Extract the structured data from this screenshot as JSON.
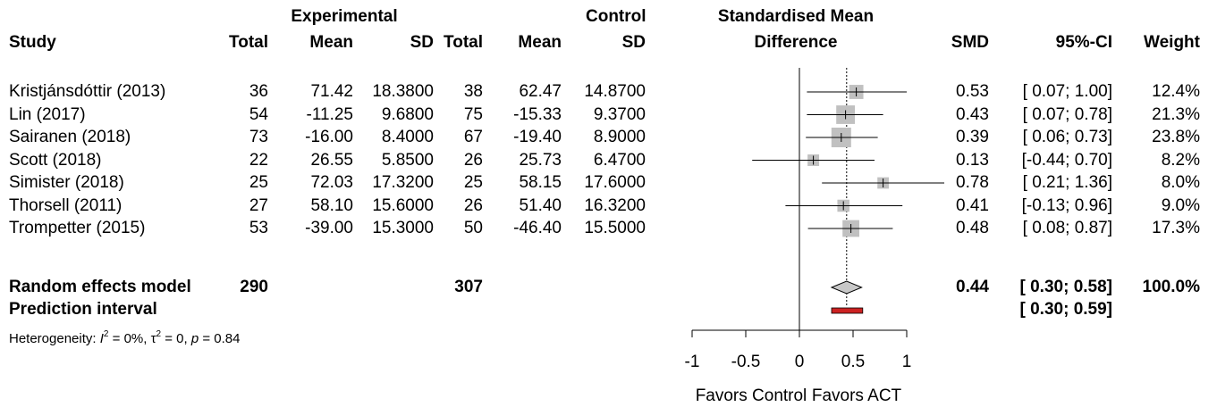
{
  "header": {
    "study": "Study",
    "exp_group": "Experimental",
    "ctrl_group": "Control",
    "total": "Total",
    "mean": "Mean",
    "sd": "SD",
    "smd_title_1": "Standardised Mean",
    "smd_title_2": "Difference",
    "smd": "SMD",
    "ci": "95%-CI",
    "weight": "Weight"
  },
  "studies": [
    {
      "study": "Kristjánsdóttir (2013)",
      "e_total": "36",
      "e_mean": "71.42",
      "e_sd": "18.3800",
      "c_total": "38",
      "c_mean": "62.47",
      "c_sd": "14.8700",
      "smd": "0.53",
      "ci": "[ 0.07; 1.00]",
      "weight": "12.4%"
    },
    {
      "study": "Lin (2017)",
      "e_total": "54",
      "e_mean": "-11.25",
      "e_sd": "9.6800",
      "c_total": "75",
      "c_mean": "-15.33",
      "c_sd": "9.3700",
      "smd": "0.43",
      "ci": "[ 0.07; 0.78]",
      "weight": "21.3%"
    },
    {
      "study": "Sairanen (2018)",
      "e_total": "73",
      "e_mean": "-16.00",
      "e_sd": "8.4000",
      "c_total": "67",
      "c_mean": "-19.40",
      "c_sd": "8.9000",
      "smd": "0.39",
      "ci": "[ 0.06; 0.73]",
      "weight": "23.8%"
    },
    {
      "study": "Scott (2018)",
      "e_total": "22",
      "e_mean": "26.55",
      "e_sd": "5.8500",
      "c_total": "26",
      "c_mean": "25.73",
      "c_sd": "6.4700",
      "smd": "0.13",
      "ci": "[-0.44; 0.70]",
      "weight": "8.2%"
    },
    {
      "study": "Simister (2018)",
      "e_total": "25",
      "e_mean": "72.03",
      "e_sd": "17.3200",
      "c_total": "25",
      "c_mean": "58.15",
      "c_sd": "17.6000",
      "smd": "0.78",
      "ci": "[ 0.21; 1.36]",
      "weight": "8.0%"
    },
    {
      "study": "Thorsell  (2011)",
      "e_total": "27",
      "e_mean": "58.10",
      "e_sd": "15.6000",
      "c_total": "26",
      "c_mean": "51.40",
      "c_sd": "16.3200",
      "smd": "0.41",
      "ci": "[-0.13; 0.96]",
      "weight": "9.0%"
    },
    {
      "study": "Trompetter (2015)",
      "e_total": "53",
      "e_mean": "-39.00",
      "e_sd": "15.3000",
      "c_total": "50",
      "c_mean": "-46.40",
      "c_sd": "15.5000",
      "smd": "0.48",
      "ci": "[ 0.08; 0.87]",
      "weight": "17.3%"
    }
  ],
  "random_effects": {
    "label": "Random effects model",
    "e_total": "290",
    "c_total": "307",
    "smd": "0.44",
    "ci": "[ 0.30; 0.58]",
    "weight": "100.0%"
  },
  "prediction_interval": {
    "label": "Prediction interval",
    "ci": "[ 0.30; 0.59]"
  },
  "heterogeneity": {
    "i2_label": "I",
    "i2_exp": "2",
    "i2_value": " = 0%, ",
    "tau_label": "τ",
    "tau_exp": "2",
    "tau_value": " = 0, ",
    "p_label": "p",
    "p_value": " = 0.84",
    "prefix": "Heterogeneity: "
  },
  "axis": {
    "favors_left": "Favors Control",
    "favors_right": "Favors ACT"
  },
  "colors": {
    "square": "#c0c0c0",
    "diamond": "#c8c8c8",
    "prediction": "#cc2222"
  },
  "chart_data": {
    "type": "forest",
    "xlim": [
      -1,
      1
    ],
    "ticks": [
      -1,
      -0.5,
      0,
      0.5,
      1
    ],
    "tick_labels": [
      "-1",
      "-0.5",
      "0",
      "0.5",
      "1"
    ],
    "studies": [
      {
        "name": "Kristjánsdóttir (2013)",
        "smd": 0.53,
        "lower": 0.07,
        "upper": 1.0,
        "weight": 12.4
      },
      {
        "name": "Lin (2017)",
        "smd": 0.43,
        "lower": 0.07,
        "upper": 0.78,
        "weight": 21.3
      },
      {
        "name": "Sairanen (2018)",
        "smd": 0.39,
        "lower": 0.06,
        "upper": 0.73,
        "weight": 23.8
      },
      {
        "name": "Scott (2018)",
        "smd": 0.13,
        "lower": -0.44,
        "upper": 0.7,
        "weight": 8.2
      },
      {
        "name": "Simister (2018)",
        "smd": 0.78,
        "lower": 0.21,
        "upper": 1.36,
        "weight": 8.0
      },
      {
        "name": "Thorsell  (2011)",
        "smd": 0.41,
        "lower": -0.13,
        "upper": 0.96,
        "weight": 9.0
      },
      {
        "name": "Trompetter (2015)",
        "smd": 0.48,
        "lower": 0.08,
        "upper": 0.87,
        "weight": 17.3
      }
    ],
    "pooled": {
      "smd": 0.44,
      "lower": 0.3,
      "upper": 0.58
    },
    "prediction": {
      "lower": 0.3,
      "upper": 0.59
    }
  }
}
